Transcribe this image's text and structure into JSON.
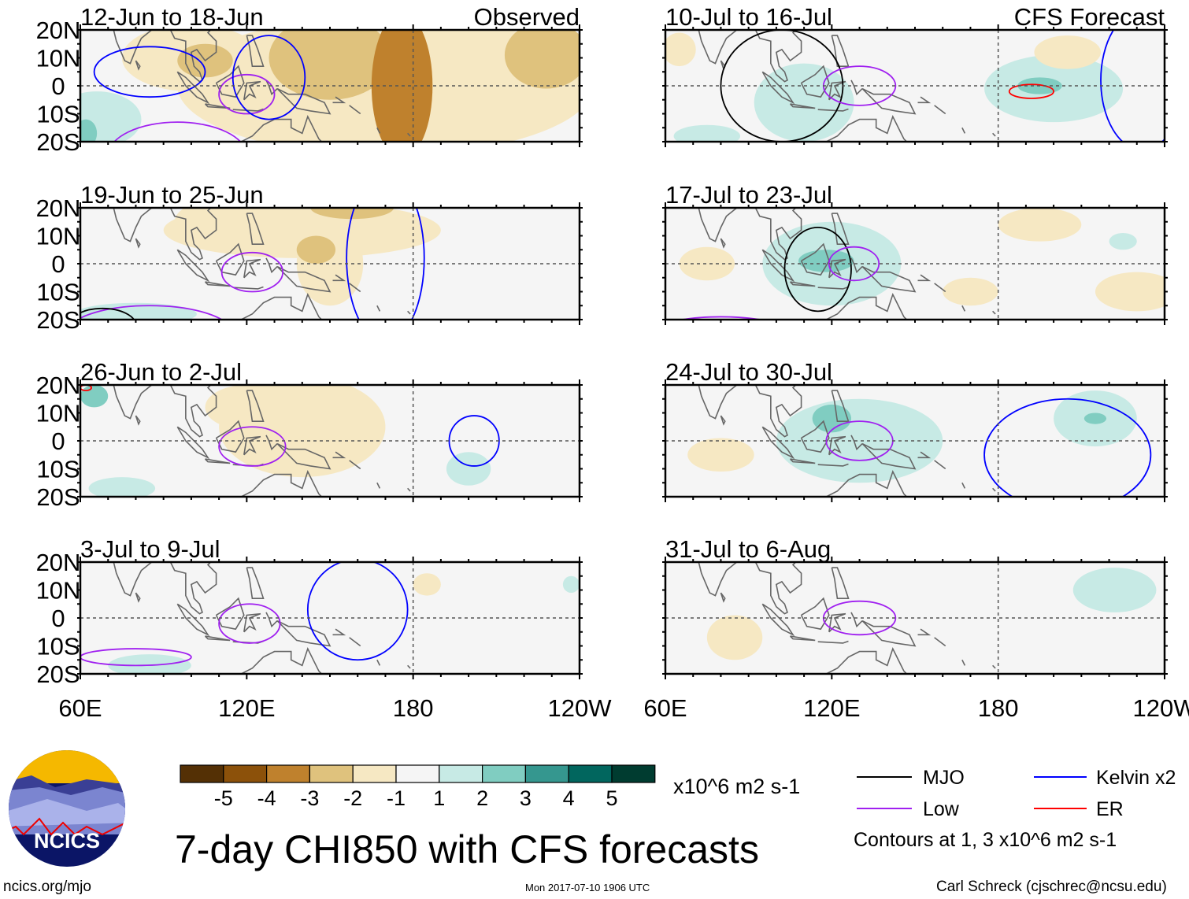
{
  "chart_data": {
    "type": "heatmap",
    "title": "7-day CHI850 with CFS forecasts",
    "units": "x10^6 m2 s-1",
    "lon_range": [
      60,
      240
    ],
    "lat_range": [
      -20,
      20
    ],
    "x_ticks": [
      "60E",
      "120E",
      "180",
      "120W"
    ],
    "y_ticks": [
      "20N",
      "10N",
      "0",
      "10S",
      "20S"
    ],
    "colorbar": {
      "labels": [
        "-5",
        "-4",
        "-3",
        "-2",
        "-1",
        "1",
        "2",
        "3",
        "4",
        "5"
      ],
      "colors": [
        "#543005",
        "#8c510a",
        "#bf812d",
        "#dfc27d",
        "#f6e8c3",
        "#f5f5f5",
        "#c7eae5",
        "#80cdc1",
        "#35978f",
        "#01665e",
        "#003c30"
      ],
      "levels": [
        -6,
        -4.5,
        -3.5,
        -2.5,
        -1.5,
        0,
        1.5,
        2.5,
        3.5,
        4.5,
        6
      ]
    },
    "contour_legend": [
      {
        "name": "MJO",
        "color": "#000000"
      },
      {
        "name": "Low",
        "color": "#a020f0"
      },
      {
        "name": "Kelvin x2",
        "color": "#0000ff"
      },
      {
        "name": "ER",
        "color": "#ff0000"
      }
    ],
    "contour_note": "Contours at 1, 3 x10^6 m2 s-1",
    "column_labels": {
      "left": "Observed",
      "right": "CFS Forecast"
    },
    "panels": [
      {
        "title": "12-Jun to 18-Jun",
        "col": 0,
        "row": 0,
        "shading": [
          [
            170,
            0,
            75,
            25,
            -1
          ],
          [
            100,
            10,
            25,
            12,
            -1
          ],
          [
            105,
            9,
            10,
            6,
            -2
          ],
          [
            150,
            10,
            22,
            15,
            -2
          ],
          [
            228,
            11,
            15,
            12,
            -2
          ],
          [
            176,
            0,
            11,
            26,
            -3
          ],
          [
            66,
            -12,
            16,
            10,
            1
          ],
          [
            62,
            -17,
            4,
            5,
            2
          ]
        ],
        "contours": [
          [
            "Low",
            120,
            -3,
            10,
            7
          ],
          [
            "Low",
            95,
            -25,
            25,
            12
          ],
          [
            "Kelvin",
            128,
            3,
            13,
            15
          ],
          [
            "Kelvin",
            85,
            5,
            20,
            9
          ]
        ]
      },
      {
        "title": "19-Jun to 25-Jun",
        "col": 0,
        "row": 1,
        "shading": [
          [
            140,
            12,
            50,
            10,
            -1
          ],
          [
            110,
            15,
            16,
            8,
            -1
          ],
          [
            150,
            0,
            12,
            15,
            -1
          ],
          [
            145,
            5,
            7,
            5,
            -2
          ],
          [
            158,
            20,
            15,
            4,
            -2
          ],
          [
            80,
            -18,
            22,
            4,
            1
          ]
        ],
        "contours": [
          [
            "Low",
            122,
            -3,
            11,
            7
          ],
          [
            "Low",
            85,
            -25,
            30,
            10
          ],
          [
            "MJO",
            68,
            -22,
            12,
            6
          ],
          [
            "Kelvin",
            170,
            2,
            14,
            30
          ]
        ]
      },
      {
        "title": "26-Jun to 2-Jul",
        "col": 0,
        "row": 2,
        "shading": [
          [
            140,
            5,
            30,
            18,
            -1
          ],
          [
            120,
            12,
            15,
            8,
            -1
          ],
          [
            200,
            -10,
            8,
            6,
            1
          ],
          [
            65,
            16,
            5,
            4,
            2
          ],
          [
            75,
            -17,
            12,
            4,
            1
          ]
        ],
        "contours": [
          [
            "Low",
            122,
            -2,
            12,
            7
          ],
          [
            "Kelvin",
            202,
            0,
            9,
            9
          ],
          [
            "ER",
            62,
            19,
            2,
            1
          ]
        ]
      },
      {
        "title": "3-Jul to 9-Jul",
        "col": 0,
        "row": 3,
        "shading": [
          [
            185,
            12,
            5,
            4,
            -1
          ],
          [
            85,
            -17,
            15,
            4,
            1
          ],
          [
            237,
            12,
            3,
            3,
            1
          ]
        ],
        "contours": [
          [
            "Low",
            121,
            -2,
            11,
            7
          ],
          [
            "Kelvin",
            160,
            3,
            18,
            18
          ],
          [
            "Low",
            80,
            -14,
            20,
            3
          ]
        ]
      },
      {
        "title": "10-Jul to 16-Jul",
        "col": 1,
        "row": 0,
        "shading": [
          [
            110,
            -6,
            18,
            14,
            1
          ],
          [
            200,
            -1,
            25,
            12,
            1
          ],
          [
            195,
            0,
            8,
            3,
            2
          ],
          [
            65,
            13,
            6,
            6,
            -1
          ],
          [
            205,
            12,
            12,
            6,
            -1
          ],
          [
            75,
            -18,
            12,
            4,
            1
          ]
        ],
        "contours": [
          [
            "MJO",
            102,
            0,
            22,
            20
          ],
          [
            "Low",
            130,
            0,
            13,
            7
          ],
          [
            "ER",
            192,
            -2,
            8,
            2.5
          ],
          [
            "Kelvin",
            232,
            2,
            15,
            25
          ]
        ]
      },
      {
        "title": "17-Jul to 23-Jul",
        "col": 1,
        "row": 1,
        "shading": [
          [
            120,
            0,
            25,
            15,
            1
          ],
          [
            118,
            1,
            10,
            4,
            2
          ],
          [
            75,
            0,
            10,
            6,
            -1
          ],
          [
            195,
            14,
            15,
            6,
            -1
          ],
          [
            230,
            -10,
            15,
            7,
            -1
          ],
          [
            170,
            -10,
            10,
            5,
            -1
          ],
          [
            225,
            8,
            5,
            3,
            1
          ]
        ],
        "contours": [
          [
            "MJO",
            115,
            -2,
            12,
            15
          ],
          [
            "Low",
            128,
            0,
            9,
            6
          ],
          [
            "Low",
            80,
            -25,
            25,
            6
          ]
        ]
      },
      {
        "title": "24-Jul to 30-Jul",
        "col": 1,
        "row": 2,
        "shading": [
          [
            130,
            0,
            30,
            15,
            1
          ],
          [
            215,
            8,
            15,
            10,
            1
          ],
          [
            120,
            8,
            7,
            5,
            2
          ],
          [
            80,
            -5,
            12,
            6,
            -1
          ],
          [
            215,
            8,
            4,
            2,
            2
          ]
        ],
        "contours": [
          [
            "Low",
            130,
            0,
            12,
            7
          ],
          [
            "Kelvin",
            205,
            -5,
            30,
            20
          ]
        ]
      },
      {
        "title": "31-Jul to 6-Aug",
        "col": 1,
        "row": 3,
        "shading": [
          [
            85,
            -7,
            10,
            8,
            -1
          ],
          [
            222,
            10,
            15,
            8,
            1
          ]
        ],
        "contours": [
          [
            "Low",
            130,
            0,
            13,
            6
          ]
        ]
      }
    ]
  },
  "logo": {
    "text": "NCICS"
  },
  "footer": {
    "url": "ncics.org/mjo",
    "timestamp": "Mon 2017-07-10 1906 UTC",
    "credit": "Carl Schreck (cjschrec@ncsu.edu)"
  }
}
